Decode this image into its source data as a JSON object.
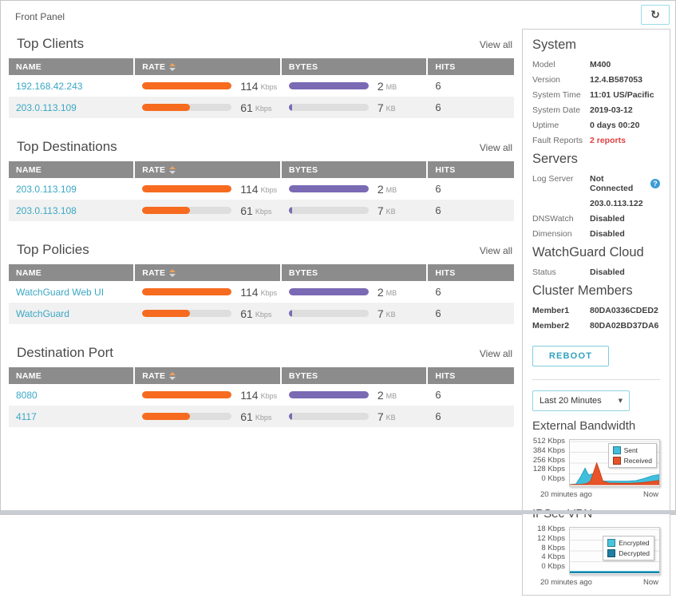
{
  "page": {
    "title": "Front Panel"
  },
  "colors": {
    "accent": "#3AA7C4",
    "rate_bar": "#F66B1F",
    "bytes_bar": "#7A6AB4",
    "fault": "#E04040"
  },
  "tables": [
    {
      "title": "Top Clients",
      "view_all": "View all",
      "columns": {
        "name": "NAME",
        "rate": "RATE",
        "bytes": "BYTES",
        "hits": "HITS"
      },
      "rows": [
        {
          "name": "192.168.42.243",
          "rate_value": "114",
          "rate_unit": "Kbps",
          "rate_width": "100%",
          "bytes_value": "2",
          "bytes_unit": "MB",
          "bytes_width": "100%",
          "hits": "6"
        },
        {
          "name": "203.0.113.109",
          "rate_value": "61",
          "rate_unit": "Kbps",
          "rate_width": "53%",
          "bytes_value": "7",
          "bytes_unit": "KB",
          "bytes_width": "4%",
          "hits": "6"
        }
      ]
    },
    {
      "title": "Top Destinations",
      "view_all": "View all",
      "columns": {
        "name": "NAME",
        "rate": "RATE",
        "bytes": "BYTES",
        "hits": "HITS"
      },
      "rows": [
        {
          "name": "203.0.113.109",
          "rate_value": "114",
          "rate_unit": "Kbps",
          "rate_width": "100%",
          "bytes_value": "2",
          "bytes_unit": "MB",
          "bytes_width": "100%",
          "hits": "6"
        },
        {
          "name": "203.0.113.108",
          "rate_value": "61",
          "rate_unit": "Kbps",
          "rate_width": "53%",
          "bytes_value": "7",
          "bytes_unit": "KB",
          "bytes_width": "4%",
          "hits": "6"
        }
      ]
    },
    {
      "title": "Top Policies",
      "view_all": "View all",
      "columns": {
        "name": "NAME",
        "rate": "RATE",
        "bytes": "BYTES",
        "hits": "HITS"
      },
      "rows": [
        {
          "name": "WatchGuard Web UI",
          "rate_value": "114",
          "rate_unit": "Kbps",
          "rate_width": "100%",
          "bytes_value": "2",
          "bytes_unit": "MB",
          "bytes_width": "100%",
          "hits": "6"
        },
        {
          "name": "WatchGuard",
          "rate_value": "61",
          "rate_unit": "Kbps",
          "rate_width": "53%",
          "bytes_value": "7",
          "bytes_unit": "KB",
          "bytes_width": "4%",
          "hits": "6"
        }
      ]
    },
    {
      "title": "Destination Port",
      "view_all": "View all",
      "columns": {
        "name": "NAME",
        "rate": "RATE",
        "bytes": "BYTES",
        "hits": "HITS"
      },
      "rows": [
        {
          "name": "8080",
          "rate_value": "114",
          "rate_unit": "Kbps",
          "rate_width": "100%",
          "bytes_value": "2",
          "bytes_unit": "MB",
          "bytes_width": "100%",
          "hits": "6"
        },
        {
          "name": "4117",
          "rate_value": "61",
          "rate_unit": "Kbps",
          "rate_width": "53%",
          "bytes_value": "7",
          "bytes_unit": "KB",
          "bytes_width": "4%",
          "hits": "6"
        }
      ]
    }
  ],
  "sidebar": {
    "system": {
      "title": "System",
      "rows": [
        {
          "label": "Model",
          "value": "M400"
        },
        {
          "label": "Version",
          "value": "12.4.B587053"
        },
        {
          "label": "System Time",
          "value": "11:01 US/Pacific"
        },
        {
          "label": "System Date",
          "value": "2019-03-12"
        },
        {
          "label": "Uptime",
          "value": "0 days 00:20"
        },
        {
          "label": "Fault Reports",
          "value": "2 reports"
        }
      ]
    },
    "servers": {
      "title": "Servers",
      "log_server_label": "Log Server",
      "log_server_value": "Not Connected",
      "log_server_help": "?",
      "log_server_address": "203.0.113.122",
      "rows": [
        {
          "label": "DNSWatch",
          "value": "Disabled"
        },
        {
          "label": "Dimension",
          "value": "Disabled"
        }
      ]
    },
    "cloud": {
      "title": "WatchGuard Cloud",
      "rows": [
        {
          "label": "Status",
          "value": "Disabled"
        }
      ]
    },
    "cluster": {
      "title": "Cluster Members",
      "rows": [
        {
          "label": "Member1",
          "value": "80DA0336CDED2"
        },
        {
          "label": "Member2",
          "value": "80DA02BD37DA6"
        }
      ]
    },
    "reboot_label": "REBOOT",
    "time_range_value": "Last 20 Minutes",
    "time_range_caret": "▼"
  },
  "refresh_icon": "↻",
  "chart_data": [
    {
      "type": "area",
      "title": "External Bandwidth",
      "ylim": [
        0,
        512
      ],
      "ymax": 512,
      "ytick_labels": [
        "512 Kbps",
        "384 Kbps",
        "256 Kbps",
        "128 Kbps",
        "0 Kbps"
      ],
      "x_start_label": "20 minutes ago",
      "x_end_label": "Now",
      "legend_position": "top-right",
      "grid": true,
      "series": [
        {
          "name": "Sent",
          "fill": "#41BEDC",
          "stroke": "#22A5C6",
          "points": [
            [
              0,
              0
            ],
            [
              7,
              8
            ],
            [
              13,
              110
            ],
            [
              17,
              195
            ],
            [
              21,
              110
            ],
            [
              25,
              128
            ],
            [
              29,
              85
            ],
            [
              33,
              48
            ],
            [
              40,
              42
            ],
            [
              52,
              40
            ],
            [
              64,
              40
            ],
            [
              74,
              48
            ],
            [
              83,
              72
            ],
            [
              92,
              105
            ],
            [
              100,
              118
            ]
          ]
        },
        {
          "name": "Received",
          "fill": "#E8542A",
          "stroke": "#D34015",
          "points": [
            [
              0,
              0
            ],
            [
              13,
              4
            ],
            [
              19,
              12
            ],
            [
              23,
              40
            ],
            [
              27,
              160
            ],
            [
              30,
              256
            ],
            [
              33,
              170
            ],
            [
              37,
              40
            ],
            [
              44,
              18
            ],
            [
              58,
              15
            ],
            [
              70,
              16
            ],
            [
              80,
              22
            ],
            [
              90,
              36
            ],
            [
              100,
              48
            ]
          ]
        }
      ]
    },
    {
      "type": "area",
      "title": "IPSec VPN",
      "ylim": [
        0,
        18
      ],
      "ymax": 18,
      "ytick_labels": [
        "18 Kbps",
        "12 Kbps",
        "8 Kbps",
        "4 Kbps",
        "0 Kbps"
      ],
      "x_start_label": "20 minutes ago",
      "x_end_label": "Now",
      "legend_position": "middle-right",
      "grid": true,
      "series": [
        {
          "name": "Encrypted",
          "type": "line",
          "fill": "#49C5DE",
          "stroke": "#49C5DE",
          "points": [
            [
              0,
              0.35
            ],
            [
              100,
              0.35
            ]
          ]
        },
        {
          "name": "Decrypted",
          "type": "line",
          "fill": "#1E7FA6",
          "stroke": "#1E7FA6",
          "points": [
            [
              0,
              0
            ],
            [
              100,
              0
            ]
          ]
        }
      ]
    }
  ]
}
